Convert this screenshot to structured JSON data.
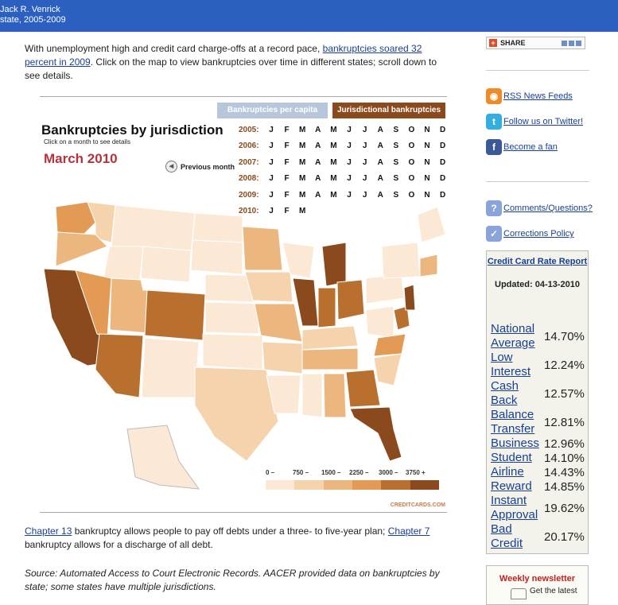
{
  "header": {
    "line1": "Jack R. Venrick",
    "line2": "state, 2005-2009"
  },
  "intro": {
    "before": "With unemployment high and credit card charge-offs at a record pace, ",
    "link": "bankruptcies soared 32 percent in 2009",
    "after": ". Click on the map to view bankruptcies over time in different states; scroll down to see details."
  },
  "map": {
    "tab_capita": "Bankruptcies per capita",
    "tab_jurisdictional": "Jurisdictional bankruptcies",
    "title": "Bankruptcies by jurisdiction",
    "subtitle": "Click on a month to see details",
    "current_month": "March 2010",
    "previous_label": "Previous month",
    "prev_arrow": "◀",
    "years": [
      {
        "label": "2005:",
        "months": [
          "J",
          "F",
          "M",
          "A",
          "M",
          "J",
          "J",
          "A",
          "S",
          "O",
          "N",
          "D"
        ]
      },
      {
        "label": "2006:",
        "months": [
          "J",
          "F",
          "M",
          "A",
          "M",
          "J",
          "J",
          "A",
          "S",
          "O",
          "N",
          "D"
        ]
      },
      {
        "label": "2007:",
        "months": [
          "J",
          "F",
          "M",
          "A",
          "M",
          "J",
          "J",
          "A",
          "S",
          "O",
          "N",
          "D"
        ]
      },
      {
        "label": "2008:",
        "months": [
          "J",
          "F",
          "M",
          "A",
          "M",
          "J",
          "J",
          "A",
          "S",
          "O",
          "N",
          "D"
        ]
      },
      {
        "label": "2009:",
        "months": [
          "J",
          "F",
          "M",
          "A",
          "M",
          "J",
          "J",
          "A",
          "S",
          "O",
          "N",
          "D"
        ]
      },
      {
        "label": "2010:",
        "months": [
          "J",
          "F",
          "M"
        ]
      }
    ],
    "legend_labels": [
      "0 –",
      "750 –",
      "1500 –",
      "2250 –",
      "3000 –",
      "3750 +"
    ],
    "legend_colors": [
      "#fbe9d6",
      "#f5d3ad",
      "#ecb77f",
      "#e39a54",
      "#b9702f",
      "#8b4a1e"
    ],
    "brand": "CREDITCARDS.COM"
  },
  "chapter": {
    "link1": "Chapter 13",
    "text1": " bankruptcy allows people to pay off debts under a three- to five-year plan; ",
    "link2": "Chapter 7",
    "text2": " bankruptcy allows for a discharge of all debt."
  },
  "source": "Source: Automated Access to Court Electronic Records. AACER provided data on bankruptcies by state; some states have multiple jurisdictions.",
  "sidebar": {
    "share_label": "SHARE",
    "share_icon": "+",
    "rss": {
      "label": "RSS News Feeds",
      "icon": "rss-icon"
    },
    "twitter": {
      "label": "Follow us on Twitter!",
      "icon": "t"
    },
    "facebook": {
      "label": "Become a fan",
      "icon": "f"
    },
    "comments": {
      "label": "Comments/Questions?",
      "icon": "?"
    },
    "corrections": {
      "label": "Corrections Policy",
      "icon": "✓"
    },
    "rate_box": {
      "title": "Credit Card Rate Report",
      "updated": "Updated: 04-13-2010",
      "rates": [
        {
          "name": "National Average",
          "value": "14.70%"
        },
        {
          "name": "Low Interest",
          "value": "12.24%"
        },
        {
          "name": "Cash Back",
          "value": "12.57%"
        },
        {
          "name": "Balance Transfer",
          "value": "12.81%"
        },
        {
          "name": "Business",
          "value": "12.96%"
        },
        {
          "name": "Student",
          "value": "14.10%"
        },
        {
          "name": "Airline",
          "value": "14.43%"
        },
        {
          "name": "Reward",
          "value": "14.85%"
        },
        {
          "name": "Instant Approval",
          "value": "19.62%"
        },
        {
          "name": "Bad Credit",
          "value": "20.17%"
        }
      ]
    },
    "newsletter": {
      "title": "Weekly newsletter",
      "text": "Get the latest"
    }
  }
}
